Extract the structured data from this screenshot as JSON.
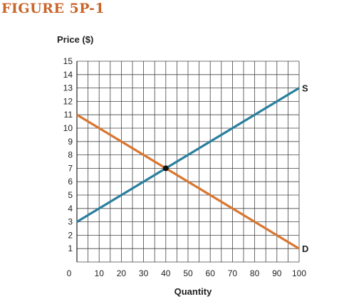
{
  "figure_title": "FIGURE 5P-1",
  "colors": {
    "title": "#c8662a",
    "supply": "#2a7f9e",
    "demand": "#d9762f",
    "grid": "#444444",
    "point": "#111111"
  },
  "chart_data": {
    "type": "line",
    "title": "",
    "ylabel": "Price ($)",
    "xlabel": "Quantity",
    "xlim": [
      0,
      100
    ],
    "ylim": [
      0,
      15
    ],
    "grid": true,
    "x_ticks": [
      10,
      20,
      30,
      40,
      50,
      60,
      70,
      80,
      90,
      100
    ],
    "y_ticks": [
      1,
      2,
      3,
      4,
      5,
      6,
      7,
      8,
      9,
      10,
      11,
      12,
      13,
      14,
      15
    ],
    "origin_label": "0",
    "series": [
      {
        "name": "S",
        "x": [
          0,
          100
        ],
        "y": [
          3,
          13
        ]
      },
      {
        "name": "D",
        "x": [
          0,
          100
        ],
        "y": [
          11,
          1
        ]
      }
    ],
    "equilibrium": {
      "x": 40,
      "y": 7
    }
  }
}
